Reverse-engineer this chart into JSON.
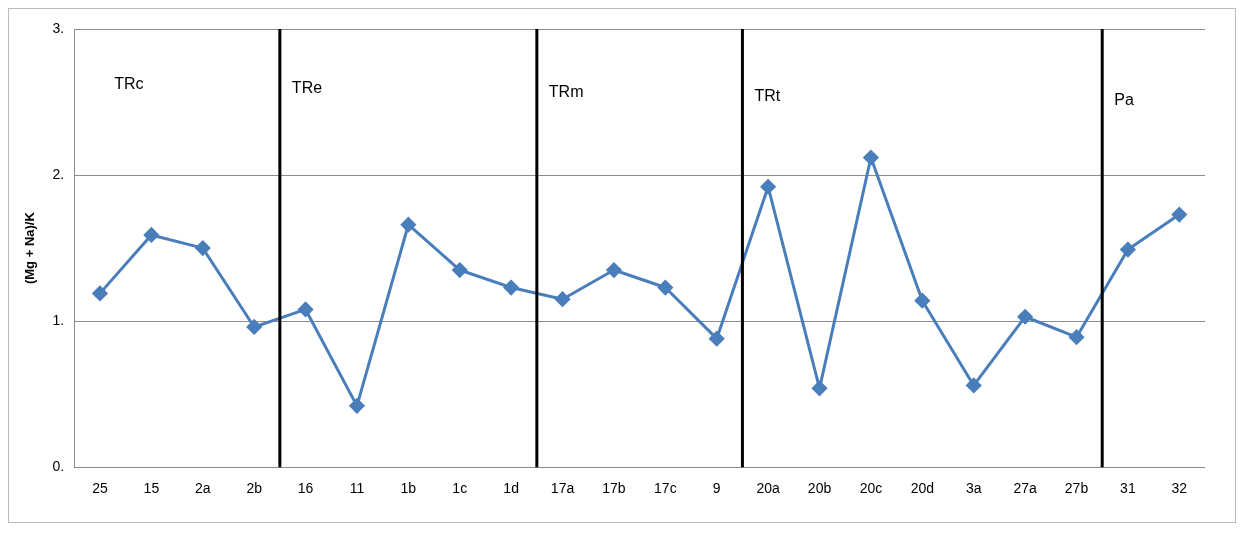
{
  "chart_data": {
    "type": "line",
    "ylabel": "(Mg + Na)/K",
    "categories": [
      "25",
      "15",
      "2a",
      "2b",
      "16",
      "11",
      "1b",
      "1c",
      "1d",
      "17a",
      "17b",
      "17c",
      "9",
      "20a",
      "20b",
      "20c",
      "20d",
      "3a",
      "27a",
      "27b",
      "31",
      "32"
    ],
    "values": [
      1.19,
      1.59,
      1.5,
      0.96,
      1.08,
      0.42,
      1.66,
      1.35,
      1.23,
      1.15,
      1.35,
      1.23,
      0.88,
      1.92,
      0.54,
      2.12,
      1.14,
      0.56,
      1.03,
      0.89,
      1.49,
      1.73
    ],
    "color": "#4a7ebb",
    "marker": "diamond",
    "line_style": "solid",
    "ylim": [
      0,
      3
    ],
    "yticks": [
      {
        "value": 0,
        "label": "0."
      },
      {
        "value": 1,
        "label": "1."
      },
      {
        "value": 2,
        "label": "2."
      },
      {
        "value": 3,
        "label": "3."
      }
    ],
    "grid": "y",
    "legend": false,
    "annotations": [
      "TRc",
      "TRe",
      "TRm",
      "TRt",
      "Pa"
    ]
  }
}
